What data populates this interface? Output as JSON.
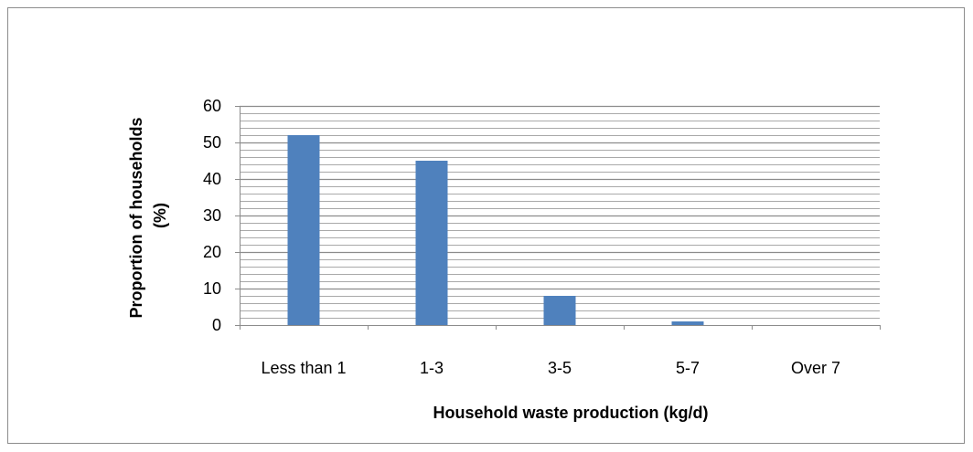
{
  "chart_data": {
    "type": "bar",
    "categories": [
      "Less than 1",
      "1-3",
      "3-5",
      "5-7",
      "Over 7"
    ],
    "values": [
      52,
      45,
      8,
      1,
      0
    ],
    "title": "",
    "xlabel": "Household waste production (kg/d)",
    "ylabel_lines": [
      "Proportion of households",
      "(%)"
    ],
    "ylim": [
      0,
      60
    ],
    "yticks": [
      0,
      10,
      20,
      30,
      40,
      50,
      60
    ],
    "minor_grid_step": 2,
    "grid": true,
    "legend": "none",
    "bar_color": "#4F81BD",
    "grid_color": "#8C8C8C"
  }
}
